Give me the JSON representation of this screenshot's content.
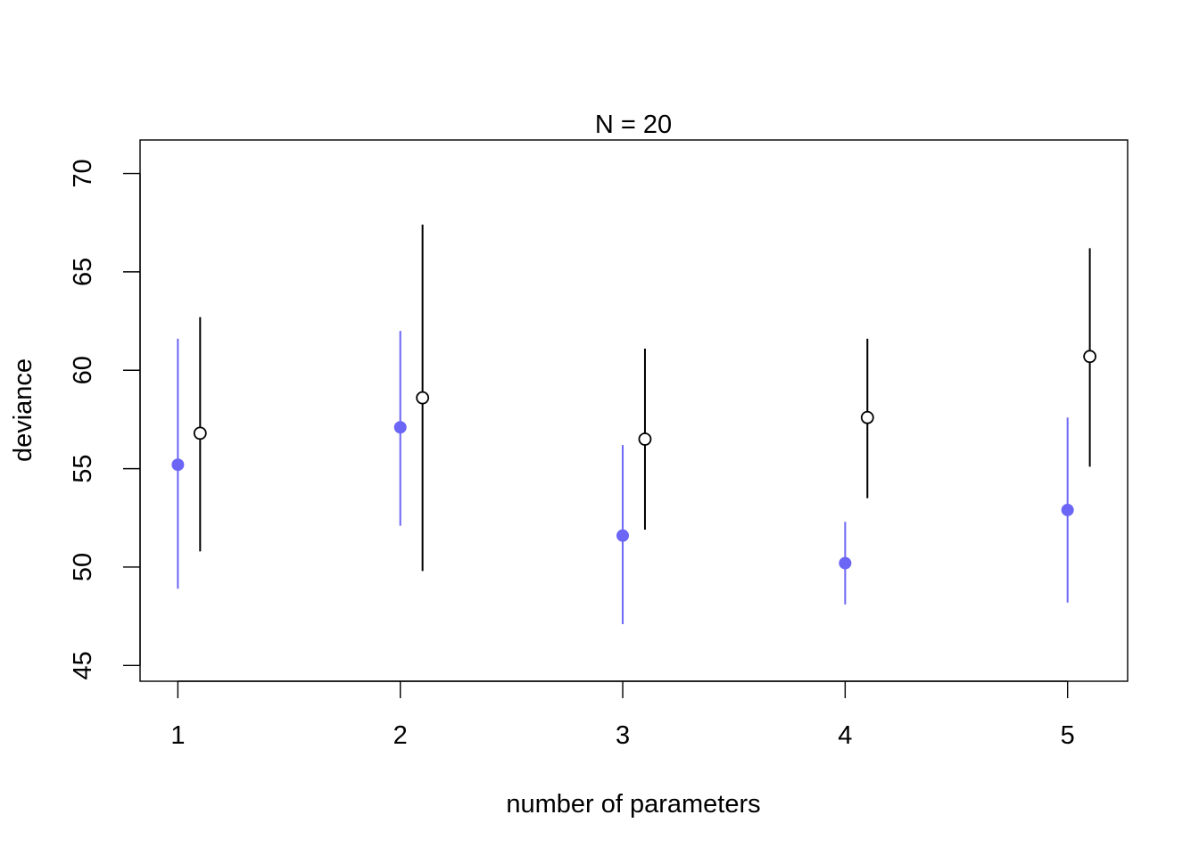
{
  "chart_data": {
    "type": "scatter",
    "title": "N = 20",
    "xlabel": "number of parameters",
    "ylabel": "deviance",
    "xlim": [
      0.83,
      5.27
    ],
    "ylim": [
      44.2,
      71.7
    ],
    "x_ticks": [
      "1",
      "2",
      "3",
      "4",
      "5"
    ],
    "y_ticks": [
      "45",
      "50",
      "55",
      "60",
      "65",
      "70"
    ],
    "grid": false,
    "legend": "none",
    "series": [
      {
        "marker": "filled-circle",
        "color": "#6b66f5",
        "x_offset": 0,
        "points": [
          {
            "x": 1,
            "y": 55.2,
            "low": 48.9,
            "high": 61.6
          },
          {
            "x": 2,
            "y": 57.1,
            "low": 52.1,
            "high": 62.0
          },
          {
            "x": 3,
            "y": 51.6,
            "low": 47.1,
            "high": 56.2
          },
          {
            "x": 4,
            "y": 50.2,
            "low": 48.1,
            "high": 52.3
          },
          {
            "x": 5,
            "y": 52.9,
            "low": 48.2,
            "high": 57.6
          }
        ]
      },
      {
        "marker": "open-circle",
        "color": "#000000",
        "x_offset": 0.1,
        "points": [
          {
            "x": 1,
            "y": 56.8,
            "low": 50.8,
            "high": 62.7
          },
          {
            "x": 2,
            "y": 58.6,
            "low": 49.8,
            "high": 67.4
          },
          {
            "x": 3,
            "y": 56.5,
            "low": 51.9,
            "high": 61.1
          },
          {
            "x": 4,
            "y": 57.6,
            "low": 53.5,
            "high": 61.6
          },
          {
            "x": 5,
            "y": 60.7,
            "low": 55.1,
            "high": 66.2
          }
        ]
      }
    ]
  }
}
